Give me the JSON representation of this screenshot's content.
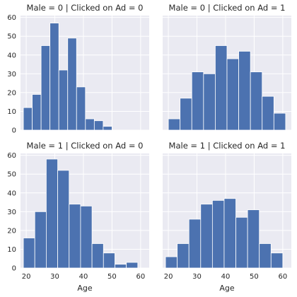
{
  "chart_data": {
    "type": "bar",
    "layout": "facet grid 2x2, shared x and y axes",
    "xlabel": "Age",
    "xlim": [
      18,
      63
    ],
    "ylim": [
      0,
      61
    ],
    "x_ticks": [
      20,
      30,
      40,
      50,
      60
    ],
    "y_ticks": [
      0,
      10,
      20,
      30,
      40,
      50,
      60
    ],
    "grid": true,
    "colors": {
      "bar": "#4c72b0",
      "panel_background": "#eaeaf2",
      "grid": "#ffffff"
    },
    "panels": [
      {
        "title": "Male = 0 | Clicked on Ad = 0",
        "bins": [
          [
            19,
            22.1,
            12
          ],
          [
            22.1,
            25.2,
            19
          ],
          [
            25.2,
            28.3,
            45
          ],
          [
            28.3,
            31.4,
            57
          ],
          [
            31.4,
            34.5,
            32
          ],
          [
            34.5,
            37.6,
            49
          ],
          [
            37.6,
            40.7,
            23
          ],
          [
            40.7,
            43.8,
            6
          ],
          [
            43.8,
            46.9,
            5
          ],
          [
            46.9,
            50,
            2
          ]
        ]
      },
      {
        "title": "Male = 0 | Clicked on Ad = 1",
        "bins": [
          [
            20,
            24.1,
            6
          ],
          [
            24.1,
            28.2,
            17
          ],
          [
            28.2,
            32.3,
            31
          ],
          [
            32.3,
            36.4,
            30
          ],
          [
            36.4,
            40.5,
            45
          ],
          [
            40.5,
            44.6,
            38
          ],
          [
            44.6,
            48.7,
            42
          ],
          [
            48.7,
            52.8,
            31
          ],
          [
            52.8,
            56.9,
            18
          ],
          [
            56.9,
            61,
            9
          ]
        ]
      },
      {
        "title": "Male = 1 | Clicked on Ad = 0",
        "bins": [
          [
            19,
            23,
            16
          ],
          [
            23,
            27,
            30
          ],
          [
            27,
            31,
            58
          ],
          [
            31,
            35,
            52
          ],
          [
            35,
            39,
            34
          ],
          [
            39,
            43,
            33
          ],
          [
            43,
            47,
            13
          ],
          [
            47,
            51,
            8
          ],
          [
            51,
            55,
            2
          ],
          [
            55,
            59,
            3
          ]
        ]
      },
      {
        "title": "Male = 1 | Clicked on Ad = 1",
        "bins": [
          [
            19,
            23.1,
            6
          ],
          [
            23.1,
            27.2,
            13
          ],
          [
            27.2,
            31.3,
            26
          ],
          [
            31.3,
            35.4,
            34
          ],
          [
            35.4,
            39.5,
            36
          ],
          [
            39.5,
            43.6,
            37
          ],
          [
            43.6,
            47.7,
            27
          ],
          [
            47.7,
            51.8,
            31
          ],
          [
            51.8,
            55.9,
            13
          ],
          [
            55.9,
            60,
            8
          ]
        ]
      }
    ]
  }
}
